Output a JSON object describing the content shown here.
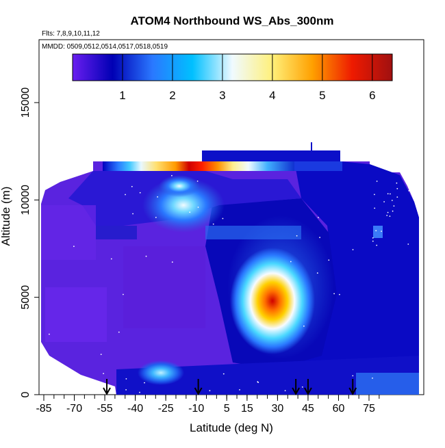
{
  "chart_data": {
    "type": "heatmap",
    "title": "ATOM4 Northbound WS_Abs_300nm",
    "subtitle_flights": "Flts: 7,8,9,10,11,12",
    "subtitle_dates": "MMDD: 0509,0512,0514,0517,0518,0519",
    "xlabel": "Latitude (deg N)",
    "ylabel": "Altitude (m)",
    "xlim": [
      -87,
      83
    ],
    "ylim": [
      0,
      17500
    ],
    "x_ticks": [
      -85,
      -70,
      -55,
      -40,
      -25,
      -10,
      5,
      15,
      30,
      45,
      60,
      75
    ],
    "y_ticks": [
      0,
      5000,
      10000,
      15000
    ],
    "colorbar": {
      "min": 0,
      "max": 6.4,
      "ticks": [
        1,
        2,
        3,
        4,
        5,
        6
      ],
      "colors": [
        "#6a1ef0",
        "#0000b4",
        "#2a78ff",
        "#00c0ff",
        "#f0faff",
        "#fff07a",
        "#ffa000",
        "#ee1a00",
        "#a01010"
      ]
    },
    "profile_markers_lat": [
      -54,
      -9,
      39,
      45,
      67
    ],
    "features": [
      {
        "name": "upper plume",
        "lat": [
          -25,
          -15
        ],
        "alt": [
          11700,
          12200
        ],
        "peak": 6.2
      },
      {
        "name": "mid plume",
        "lat": [
          8,
          22
        ],
        "alt": [
          4000,
          6000
        ],
        "peak": 6.0
      },
      {
        "name": "upper layer",
        "lat": [
          -38,
          -5
        ],
        "alt": [
          8800,
          10800
        ],
        "peak": 3.0
      },
      {
        "name": "low layer",
        "lat": [
          -38,
          -28
        ],
        "alt": [
          800,
          1400
        ],
        "peak": 2.3
      }
    ]
  }
}
